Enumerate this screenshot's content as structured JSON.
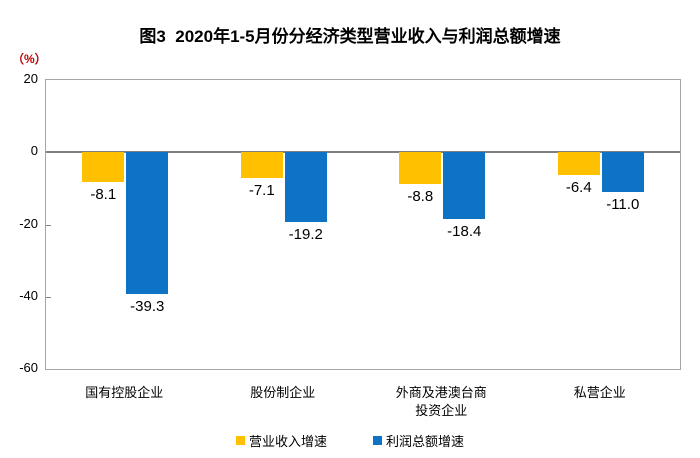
{
  "title": "图3  2020年1-5月份分经济类型营业收入与利润总额增速",
  "unit_label": "（%）",
  "colors": {
    "revenue": "#FFC000",
    "profit": "#0E73C4",
    "axis_border": "#A6A6A6",
    "zero_line": "#808080",
    "unit_label_red": "#C00000",
    "text": "#000000"
  },
  "chart_data": {
    "type": "bar",
    "title": "图3  2020年1-5月份分经济类型营业收入与利润总额增速",
    "ylabel": "（%）",
    "categories": [
      "国有控股企业",
      "股份制企业",
      "外商及港澳台商\n投资企业",
      "私营企业"
    ],
    "series": [
      {
        "name": "营业收入增速",
        "color_key": "revenue",
        "values": [
          -8.1,
          -7.1,
          -8.8,
          -6.4
        ]
      },
      {
        "name": "利润总额增速",
        "color_key": "profit",
        "values": [
          -39.3,
          -19.2,
          -18.4,
          -11.0
        ]
      }
    ],
    "ylim": [
      -60,
      20
    ],
    "yticks": [
      20,
      0,
      -20,
      -40,
      -60
    ],
    "minor_tick_values": [
      -20,
      -40
    ],
    "grid": false,
    "legend_position": "bottom",
    "data_labels": true
  }
}
